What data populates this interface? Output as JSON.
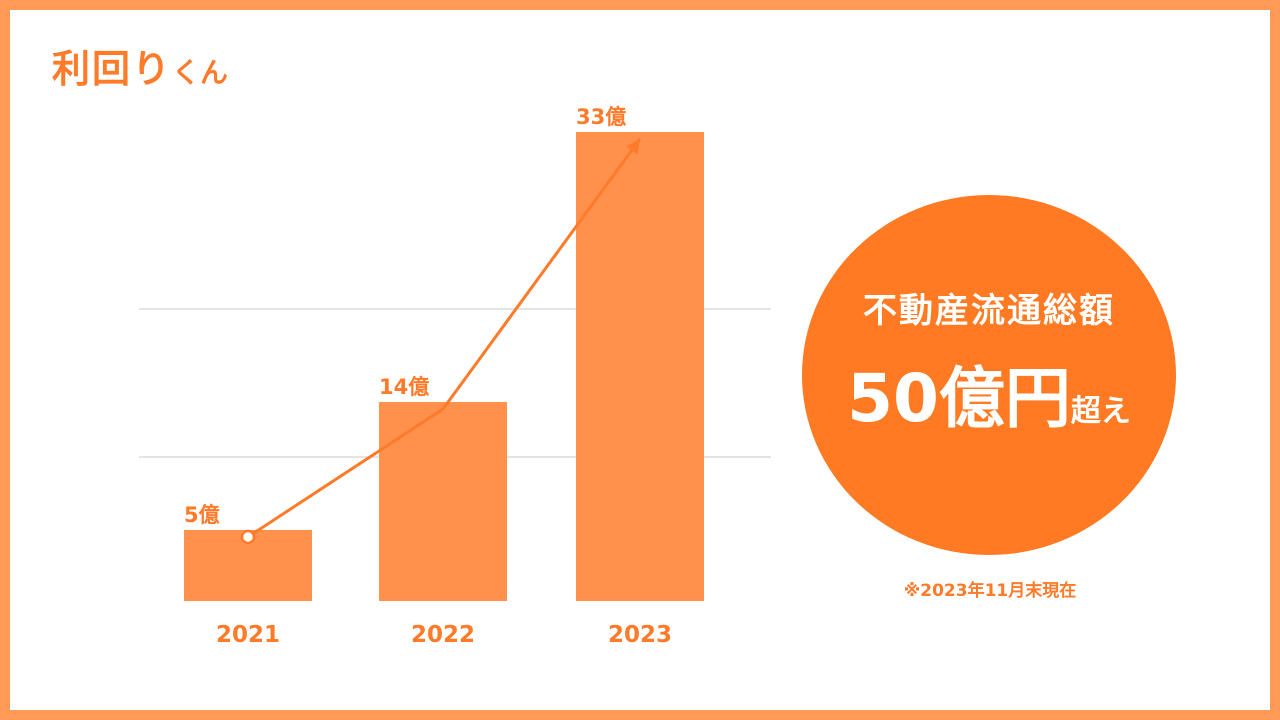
{
  "logo": {
    "main": "利回り",
    "suffix": "くん"
  },
  "chart_data": {
    "type": "bar",
    "categories": [
      "2021",
      "2022",
      "2023"
    ],
    "values": [
      5,
      14,
      33
    ],
    "data_labels": [
      "5億",
      "14億",
      "33億"
    ],
    "title": "",
    "xlabel": "",
    "ylabel": "",
    "ylim": [
      0,
      33
    ],
    "grid": true,
    "trend_line": true,
    "bar_color": "#ff914d",
    "line_color": "#ff7a29",
    "label_color": "#ff7a29"
  },
  "highlight": {
    "line1": "不動産流通総額",
    "big": "50億円",
    "small": "超え",
    "color": "#ff7a22"
  },
  "note": "※2023年11月末現在",
  "colors": {
    "frame": "#ff9a57",
    "grid": "#c8c8c8"
  }
}
